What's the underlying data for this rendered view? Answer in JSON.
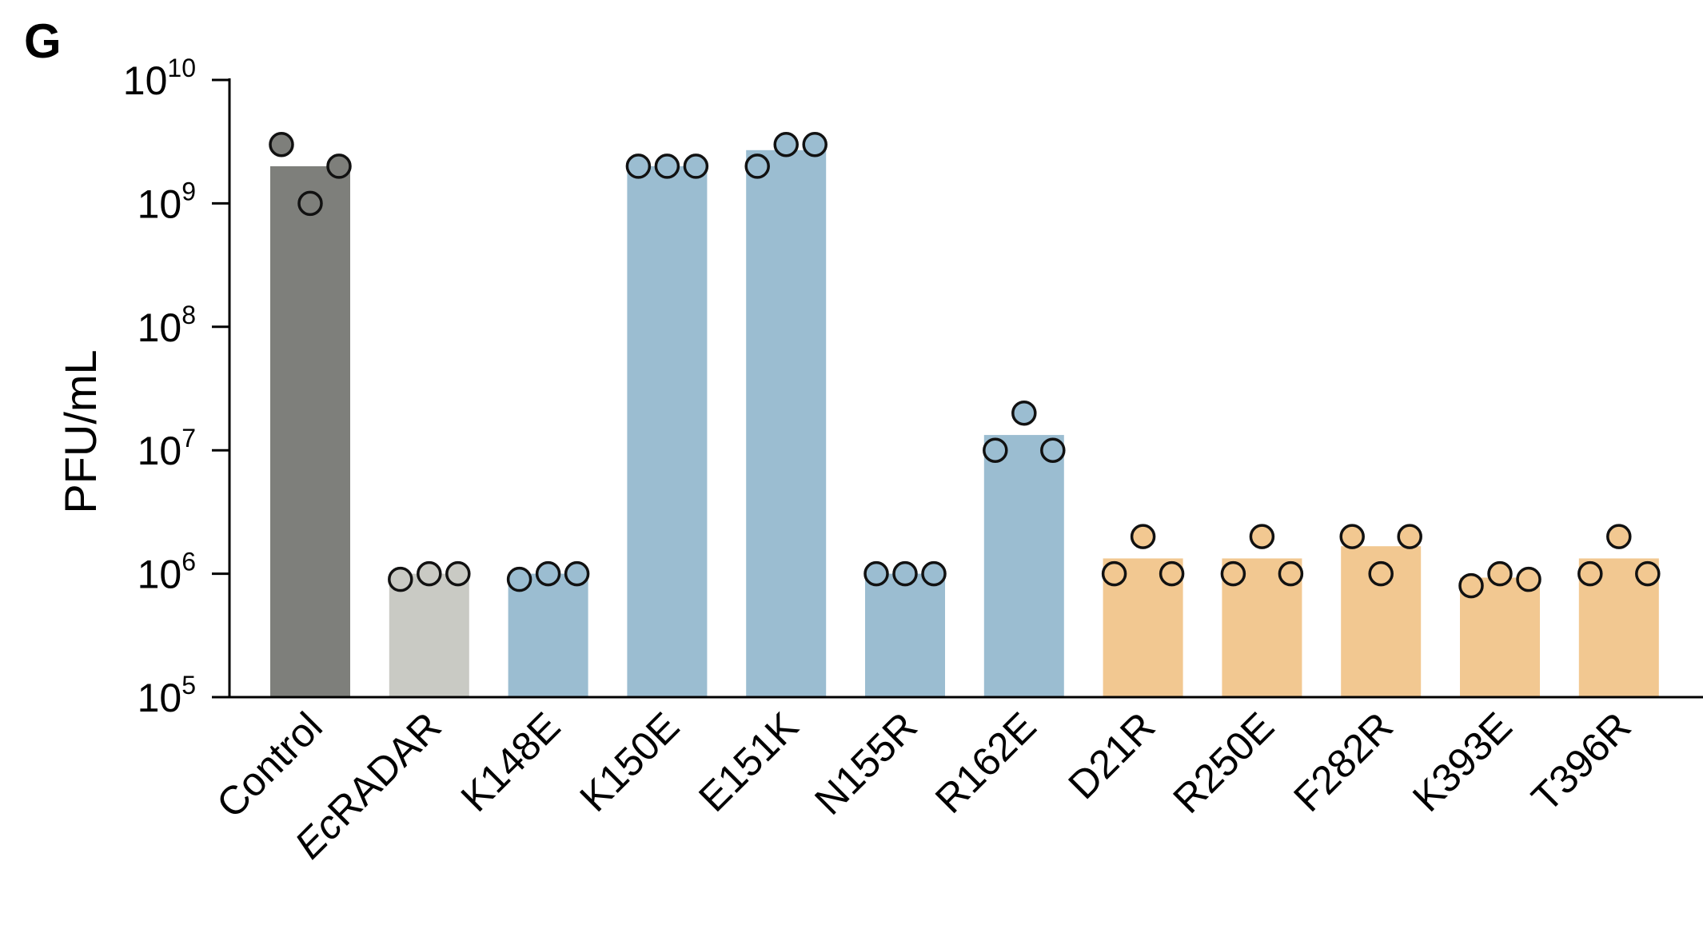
{
  "panel_label": "G",
  "colors": {
    "control": "#7e7f7b",
    "ecradar": "#c9cac4",
    "blue": "#9bbdd1",
    "orange": "#f2c891",
    "axis": "#000000",
    "point_stroke": "#111111"
  },
  "chart_data": {
    "type": "bar",
    "ylabel": "PFU/mL",
    "xlabel": "",
    "yscale": "log",
    "ylim": [
      100000,
      10000000000
    ],
    "yticks": [
      {
        "base": "10",
        "exp": "5"
      },
      {
        "base": "10",
        "exp": "6"
      },
      {
        "base": "10",
        "exp": "7"
      },
      {
        "base": "10",
        "exp": "8"
      },
      {
        "base": "10",
        "exp": "9"
      },
      {
        "base": "10",
        "exp": "10"
      }
    ],
    "categories": [
      "Control",
      "EcRADAR",
      "K148E",
      "K150E",
      "E151K",
      "N155R",
      "R162E",
      "D21R",
      "R250E",
      "F282R",
      "K393E",
      "T396R"
    ],
    "italic_categories": [
      "Ec"
    ],
    "bar_values": [
      2000000000,
      1000000,
      1000000,
      2000000000,
      2700000000,
      1000000,
      13300000,
      1330000,
      1330000,
      1670000,
      930000,
      1330000
    ],
    "bar_colors": [
      "control",
      "ecradar",
      "blue",
      "blue",
      "blue",
      "blue",
      "blue",
      "orange",
      "orange",
      "orange",
      "orange",
      "orange"
    ],
    "replicates": [
      [
        3000000000,
        1000000000,
        2000000000
      ],
      [
        900000,
        1000000,
        1000000
      ],
      [
        900000,
        1000000,
        1000000
      ],
      [
        2000000000,
        2000000000,
        2000000000
      ],
      [
        2000000000,
        3000000000,
        3000000000
      ],
      [
        1000000,
        1000000,
        1000000
      ],
      [
        10000000,
        20000000,
        10000000
      ],
      [
        1000000,
        2000000,
        1000000
      ],
      [
        1000000,
        2000000,
        1000000
      ],
      [
        2000000,
        1000000,
        2000000
      ],
      [
        800000,
        1000000,
        900000
      ],
      [
        1000000,
        2000000,
        1000000
      ]
    ],
    "grid": false,
    "legend": "none"
  }
}
